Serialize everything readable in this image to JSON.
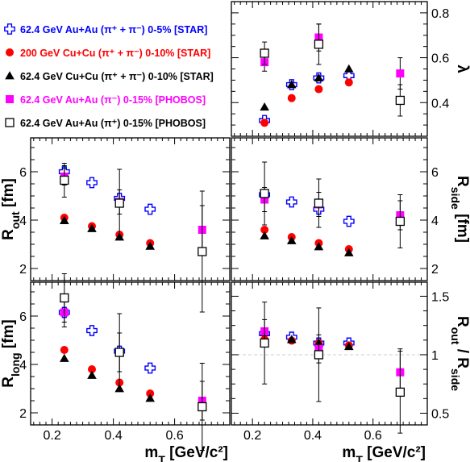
{
  "legend": [
    {
      "marker": "open-cross",
      "color": "#0000ff",
      "label": "62.4 GeV Au+Au (π⁺ + π⁻) 0-5% [STAR]"
    },
    {
      "marker": "filled-circle",
      "color": "#ff0000",
      "label": "200 GeV Cu+Cu (π⁺ + π⁻) 0-10% [STAR]"
    },
    {
      "marker": "filled-triangle",
      "color": "#000000",
      "label": "62.4 GeV Cu+Cu (π⁺ + π⁻) 0-10% [STAR]"
    },
    {
      "marker": "filled-square",
      "color": "#ff00ff",
      "label": "62.4 GeV Au+Au (π⁻) 0-15% [PHOBOS]"
    },
    {
      "marker": "open-square",
      "color": "#000000",
      "label": "62.4 GeV Au+Au (π⁺) 0-15% [PHOBOS]"
    }
  ],
  "chart_data": [
    {
      "id": "lambda",
      "type": "scatter",
      "ylabel": "λ",
      "ylim": [
        0.25,
        0.85
      ],
      "xlim": [
        0.13,
        0.78
      ],
      "yticks": [
        0.4,
        0.6,
        0.8
      ],
      "ytick_labels": [
        "0.4",
        "0.6",
        "0.8"
      ],
      "series": [
        {
          "name": "62.4 GeV Au+Au (π⁺ + π⁻) 0-5% [STAR]",
          "marker": "open-cross",
          "color": "#0000ff",
          "x": [
            0.24,
            0.33,
            0.42,
            0.52
          ],
          "y": [
            0.32,
            0.48,
            0.51,
            0.52
          ],
          "err": [
            0,
            0,
            0,
            0
          ]
        },
        {
          "name": "200 GeV Cu+Cu (π⁺ + π⁻) 0-10% [STAR]",
          "marker": "filled-circle",
          "color": "#ff0000",
          "x": [
            0.24,
            0.33,
            0.42,
            0.52
          ],
          "y": [
            0.31,
            0.42,
            0.46,
            0.49
          ],
          "err": [
            0,
            0,
            0,
            0
          ]
        },
        {
          "name": "62.4 GeV Cu+Cu (π⁺ + π⁻) 0-10% [STAR]",
          "marker": "filled-triangle",
          "color": "#000000",
          "x": [
            0.24,
            0.33,
            0.42,
            0.52
          ],
          "y": [
            0.38,
            0.48,
            0.51,
            0.55
          ],
          "err": [
            0,
            0,
            0,
            0
          ]
        },
        {
          "name": "62.4 GeV Au+Au (π⁻) 0-15% [PHOBOS]",
          "marker": "filled-square",
          "color": "#ff00ff",
          "x": [
            0.24,
            0.42,
            0.69
          ],
          "y": [
            0.58,
            0.69,
            0.53
          ],
          "err": [
            0.04,
            0.06,
            0.07
          ]
        },
        {
          "name": "62.4 GeV Au+Au (π⁺) 0-15% [PHOBOS]",
          "marker": "open-square",
          "color": "#000000",
          "x": [
            0.24,
            0.42,
            0.69
          ],
          "y": [
            0.62,
            0.66,
            0.41
          ],
          "err": [
            0.05,
            0.09,
            0.07
          ]
        }
      ]
    },
    {
      "id": "rout",
      "type": "scatter",
      "ylabel": "R_out [fm]",
      "ylim": [
        1.5,
        7.4
      ],
      "xlim": [
        0.13,
        0.78
      ],
      "yticks": [
        2,
        4,
        6
      ],
      "ytick_labels": [
        "2",
        "4",
        "6"
      ],
      "series": [
        {
          "name": "62.4 GeV Au+Au (π⁺ + π⁻) 0-5% [STAR]",
          "marker": "open-cross",
          "color": "#0000ff",
          "x": [
            0.24,
            0.33,
            0.42,
            0.52
          ],
          "y": [
            6.0,
            5.55,
            4.9,
            4.45
          ],
          "err": [
            0.25,
            0,
            0.15,
            0
          ]
        },
        {
          "name": "200 GeV Cu+Cu (π⁺ + π⁻) 0-10% [STAR]",
          "marker": "filled-circle",
          "color": "#ff0000",
          "x": [
            0.24,
            0.33,
            0.42,
            0.52
          ],
          "y": [
            4.1,
            3.75,
            3.4,
            3.05
          ],
          "err": [
            0,
            0,
            0,
            0
          ]
        },
        {
          "name": "62.4 GeV Cu+Cu (π⁺ + π⁻) 0-10% [STAR]",
          "marker": "filled-triangle",
          "color": "#000000",
          "x": [
            0.24,
            0.33,
            0.42,
            0.52
          ],
          "y": [
            3.98,
            3.65,
            3.3,
            2.92
          ],
          "err": [
            0,
            0,
            0,
            0
          ]
        },
        {
          "name": "62.4 GeV Au+Au (π⁻) 0-15% [PHOBOS]",
          "marker": "filled-square",
          "color": "#ff00ff",
          "x": [
            0.24,
            0.42,
            0.69
          ],
          "y": [
            5.8,
            4.75,
            3.6
          ],
          "err": [
            0.35,
            0.5,
            1.0
          ]
        },
        {
          "name": "62.4 GeV Au+Au (π⁺) 0-15% [PHOBOS]",
          "marker": "open-square",
          "color": "#000000",
          "x": [
            0.24,
            0.42,
            0.69
          ],
          "y": [
            5.65,
            4.7,
            2.7
          ],
          "err": [
            0.7,
            1.4,
            2.5
          ]
        }
      ]
    },
    {
      "id": "rside",
      "type": "scatter",
      "ylabel": "R_side [fm]",
      "ylim": [
        1.5,
        7.4
      ],
      "xlim": [
        0.13,
        0.78
      ],
      "yticks": [
        2,
        4,
        6
      ],
      "ytick_labels": [
        "2",
        "4",
        "6"
      ],
      "series": [
        {
          "name": "62.4 GeV Au+Au (π⁺ + π⁻) 0-5% [STAR]",
          "marker": "open-cross",
          "color": "#0000ff",
          "x": [
            0.24,
            0.33,
            0.42,
            0.52
          ],
          "y": [
            5.05,
            4.75,
            4.45,
            3.95
          ],
          "err": [
            0,
            0,
            0,
            0
          ]
        },
        {
          "name": "200 GeV Cu+Cu (π⁺ + π⁻) 0-10% [STAR]",
          "marker": "filled-circle",
          "color": "#ff0000",
          "x": [
            0.24,
            0.33,
            0.42,
            0.52
          ],
          "y": [
            3.6,
            3.3,
            3.05,
            2.8
          ],
          "err": [
            0,
            0,
            0,
            0
          ]
        },
        {
          "name": "62.4 GeV Cu+Cu (π⁺ + π⁻) 0-10% [STAR]",
          "marker": "filled-triangle",
          "color": "#000000",
          "x": [
            0.24,
            0.33,
            0.42,
            0.52
          ],
          "y": [
            3.35,
            3.15,
            2.9,
            2.65
          ],
          "err": [
            0,
            0,
            0,
            0
          ]
        },
        {
          "name": "62.4 GeV Au+Au (π⁻) 0-15% [PHOBOS]",
          "marker": "filled-square",
          "color": "#ff00ff",
          "x": [
            0.24,
            0.42,
            0.69
          ],
          "y": [
            4.85,
            4.65,
            4.2
          ],
          "err": [
            0.5,
            0.5,
            0.6
          ]
        },
        {
          "name": "62.4 GeV Au+Au (π⁺) 0-15% [PHOBOS]",
          "marker": "open-square",
          "color": "#000000",
          "x": [
            0.24,
            0.42,
            0.69
          ],
          "y": [
            5.1,
            4.7,
            3.95
          ],
          "err": [
            1.3,
            1.0,
            1.1
          ]
        }
      ]
    },
    {
      "id": "rlong",
      "type": "scatter",
      "ylabel": "R_long [fm]",
      "ylim": [
        1.5,
        7.4
      ],
      "xlim": [
        0.13,
        0.78
      ],
      "yticks": [
        2,
        4,
        6
      ],
      "ytick_labels": [
        "2",
        "4",
        "6"
      ],
      "xlabel": "m_T [GeV/c²]",
      "xticks": [
        0.2,
        0.4,
        0.6
      ],
      "xtick_labels": [
        "0.2",
        "0.4",
        "0.6"
      ],
      "series": [
        {
          "name": "62.4 GeV Au+Au (π⁺ + π⁻) 0-5% [STAR]",
          "marker": "open-cross",
          "color": "#0000ff",
          "x": [
            0.24,
            0.33,
            0.42,
            0.52
          ],
          "y": [
            6.15,
            5.4,
            4.55,
            3.85
          ],
          "err": [
            0,
            0,
            0,
            0
          ]
        },
        {
          "name": "200 GeV Cu+Cu (π⁺ + π⁻) 0-10% [STAR]",
          "marker": "filled-circle",
          "color": "#ff0000",
          "x": [
            0.24,
            0.33,
            0.42,
            0.52
          ],
          "y": [
            4.6,
            3.8,
            3.25,
            2.8
          ],
          "err": [
            0,
            0,
            0,
            0
          ]
        },
        {
          "name": "62.4 GeV Cu+Cu (π⁺ + π⁻) 0-10% [STAR]",
          "marker": "filled-triangle",
          "color": "#000000",
          "x": [
            0.24,
            0.33,
            0.42,
            0.52
          ],
          "y": [
            4.25,
            3.55,
            3.0,
            2.6
          ],
          "err": [
            0,
            0,
            0,
            0
          ]
        },
        {
          "name": "62.4 GeV Au+Au (π⁻) 0-15% [PHOBOS]",
          "marker": "filled-square",
          "color": "#ff00ff",
          "x": [
            0.24,
            0.42,
            0.69
          ],
          "y": [
            6.15,
            4.5,
            2.5
          ],
          "err": [
            0.6,
            0.8,
            0.8
          ]
        },
        {
          "name": "62.4 GeV Au+Au (π⁺) 0-15% [PHOBOS]",
          "marker": "open-square",
          "color": "#000000",
          "x": [
            0.24,
            0.42,
            0.69
          ],
          "y": [
            6.75,
            4.5,
            2.25
          ],
          "err": [
            1.0,
            1.6,
            1.8
          ]
        }
      ]
    },
    {
      "id": "ratio",
      "type": "scatter",
      "ylabel": "R_out / R_side",
      "ylim": [
        0.4,
        1.62
      ],
      "xlim": [
        0.13,
        0.78
      ],
      "yticks": [
        0.5,
        1.0,
        1.5
      ],
      "ytick_labels": [
        "0.5",
        "1",
        "1.5"
      ],
      "reference_line": 1.0,
      "xlabel": "m_T [GeV/c²]",
      "xticks": [
        0.2,
        0.4,
        0.6
      ],
      "xtick_labels": [
        "0.2",
        "0.4",
        "0.6"
      ],
      "series": [
        {
          "name": "62.4 GeV Au+Au (π⁺ + π⁻) 0-5% [STAR]",
          "marker": "open-cross",
          "color": "#0000ff",
          "x": [
            0.24,
            0.33,
            0.42,
            0.52
          ],
          "y": [
            1.18,
            1.15,
            1.1,
            1.1
          ],
          "err": [
            0,
            0,
            0,
            0
          ]
        },
        {
          "name": "200 GeV Cu+Cu (π⁺ + π⁻) 0-10% [STAR]",
          "marker": "filled-circle",
          "color": "#ff0000",
          "x": [
            0.24,
            0.33,
            0.42,
            0.52
          ],
          "y": [
            1.13,
            1.12,
            1.1,
            1.08
          ],
          "err": [
            0,
            0,
            0,
            0
          ]
        },
        {
          "name": "62.4 GeV Cu+Cu (π⁺ + π⁻) 0-10% [STAR]",
          "marker": "filled-triangle",
          "color": "#000000",
          "x": [
            0.24,
            0.33,
            0.42,
            0.52
          ],
          "y": [
            1.19,
            1.13,
            1.1,
            1.07
          ],
          "err": [
            0,
            0,
            0,
            0
          ]
        },
        {
          "name": "62.4 GeV Au+Au (π⁻) 0-15% [PHOBOS]",
          "marker": "filled-square",
          "color": "#ff00ff",
          "x": [
            0.24,
            0.42,
            0.69
          ],
          "y": [
            1.2,
            1.05,
            0.85
          ],
          "err": [
            0.1,
            0.12,
            0.2
          ]
        },
        {
          "name": "62.4 GeV Au+Au (π⁺) 0-15% [PHOBOS]",
          "marker": "open-square",
          "color": "#000000",
          "x": [
            0.24,
            0.42,
            0.69
          ],
          "y": [
            1.1,
            1.0,
            0.68
          ],
          "err": [
            0.35,
            0.4,
            0.35
          ]
        }
      ]
    }
  ]
}
